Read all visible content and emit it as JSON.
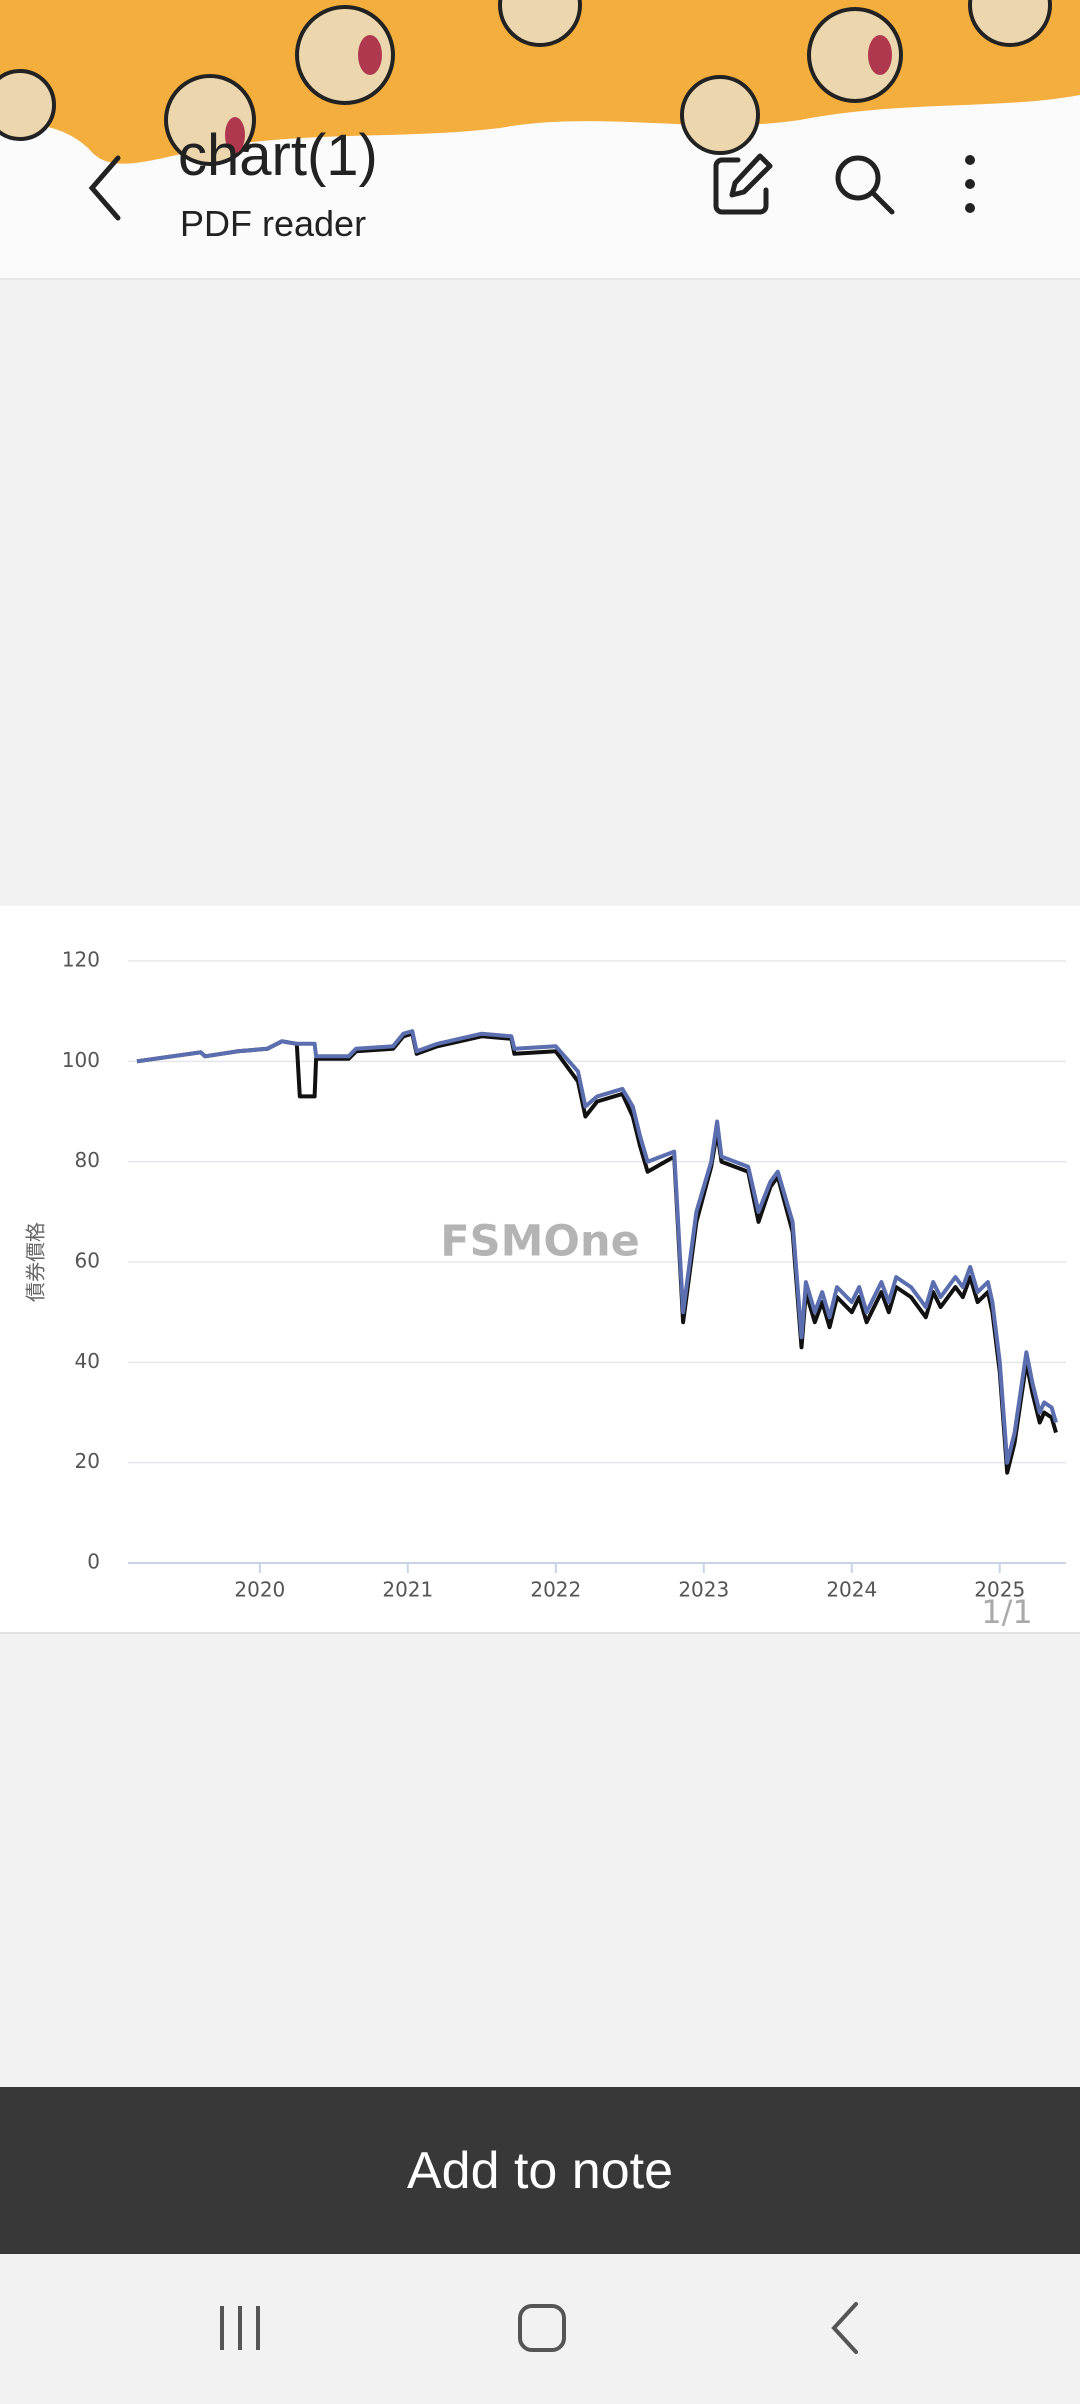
{
  "app_bar": {
    "title": "chart(1)",
    "subtitle": "PDF reader"
  },
  "chart_data": {
    "type": "line",
    "y_label": "債券價格",
    "watermark": "FSMOne",
    "x": [
      2019.17,
      2019.6,
      2019.63,
      2019.85,
      2020.05,
      2020.15,
      2020.25,
      2020.27,
      2020.37,
      2020.38,
      2020.6,
      2020.65,
      2020.9,
      2020.97,
      2021.03,
      2021.06,
      2021.2,
      2021.5,
      2021.7,
      2021.72,
      2022.0,
      2022.15,
      2022.2,
      2022.28,
      2022.45,
      2022.52,
      2022.57,
      2022.62,
      2022.8,
      2022.86,
      2022.95,
      2023.05,
      2023.09,
      2023.12,
      2023.3,
      2023.37,
      2023.45,
      2023.5,
      2023.6,
      2023.66,
      2023.69,
      2023.75,
      2023.8,
      2023.85,
      2023.9,
      2024.0,
      2024.05,
      2024.1,
      2024.2,
      2024.25,
      2024.3,
      2024.4,
      2024.5,
      2024.55,
      2024.6,
      2024.7,
      2024.75,
      2024.8,
      2024.85,
      2024.92,
      2024.95,
      2025.0,
      2025.05,
      2025.1,
      2025.18,
      2025.22,
      2025.27,
      2025.3,
      2025.35,
      2025.38
    ],
    "xlim": [
      2019.17,
      2025.38
    ],
    "xticks": [
      2020,
      2021,
      2022,
      2023,
      2024,
      2025
    ],
    "ylim": [
      0,
      120
    ],
    "yticks": [
      0,
      20,
      40,
      60,
      80,
      100,
      120
    ],
    "grid": true,
    "series": [
      {
        "color": "#111111",
        "values": [
          100,
          101.8,
          101,
          102,
          102.5,
          104,
          103.5,
          93,
          93,
          100.5,
          100.5,
          102,
          102.5,
          105,
          105.5,
          101.5,
          103,
          105,
          104.5,
          101.5,
          102,
          96,
          89,
          92,
          93.5,
          89,
          83,
          78,
          81,
          48,
          68,
          79,
          86,
          80,
          78,
          68,
          75,
          77,
          66,
          43,
          54,
          48,
          52,
          47,
          53,
          50,
          53,
          48,
          54,
          50,
          55,
          53,
          49,
          54,
          51,
          55,
          53,
          57,
          52,
          54,
          50,
          38,
          18,
          24,
          40,
          34,
          28,
          30,
          29,
          26
        ]
      },
      {
        "color": "#5b6fb0",
        "values": [
          100,
          101.8,
          101,
          102,
          102.5,
          104,
          103.5,
          103.5,
          103.5,
          101,
          101,
          102.5,
          103,
          105.5,
          106,
          102,
          103.5,
          105.5,
          105,
          102.5,
          103,
          98,
          91,
          93,
          94.5,
          91,
          85,
          80,
          82,
          50,
          70,
          80,
          88,
          81,
          79,
          70,
          76,
          78,
          68,
          45,
          56,
          50,
          54,
          49,
          55,
          52,
          55,
          50,
          56,
          52,
          57,
          55,
          51,
          56,
          53,
          57,
          55,
          59,
          54,
          56,
          52,
          40,
          20,
          26,
          42,
          36,
          30,
          32,
          31,
          28
        ]
      }
    ]
  },
  "page_indicator": "1/1",
  "action_button": "Add to note"
}
